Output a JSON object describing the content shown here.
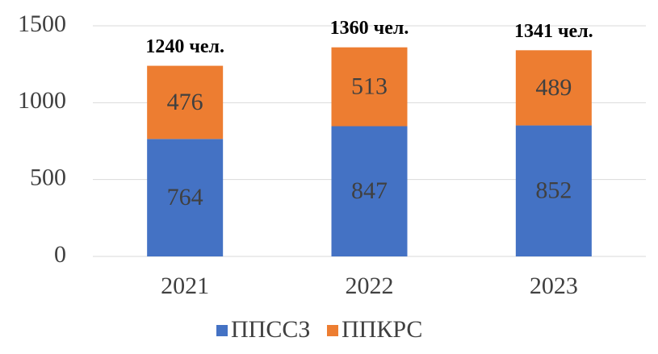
{
  "chart_data": {
    "type": "stacked_bar",
    "categories": [
      "2021",
      "2022",
      "2023"
    ],
    "series": [
      {
        "name": "ППССЗ",
        "color": "#4472c4",
        "values": [
          764,
          847,
          852
        ]
      },
      {
        "name": "ППКРС",
        "color": "#ed7d31",
        "values": [
          476,
          513,
          489
        ]
      }
    ],
    "annotations": [
      "1240 чел.",
      "1360 чел.",
      "1341 чел."
    ],
    "ylim": [
      0,
      1500
    ],
    "yticks": [
      0,
      500,
      1000,
      1500
    ],
    "grid": true,
    "legend": "bottom"
  }
}
